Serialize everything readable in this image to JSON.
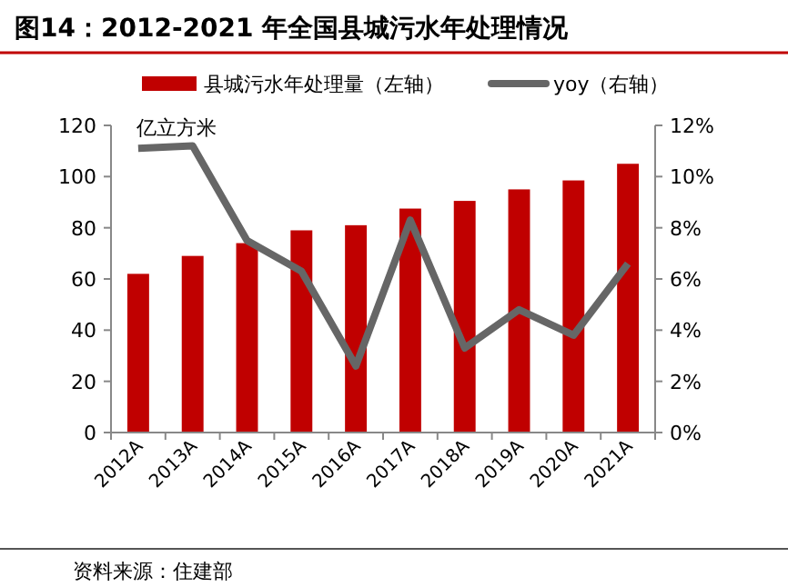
{
  "chart_data": {
    "type": "bar",
    "title": "图14：2012-2021 年全国县城污水年处理情况",
    "ylabel": "亿立方米",
    "categories": [
      "2012A",
      "2013A",
      "2014A",
      "2015A",
      "2016A",
      "2017A",
      "2018A",
      "2019A",
      "2020A",
      "2021A"
    ],
    "series": [
      {
        "name": "县城污水年处理量（左轴）",
        "color": "#c00000",
        "values": [
          62,
          69,
          74,
          79,
          81,
          87.5,
          90.5,
          95,
          98.5,
          105
        ]
      },
      {
        "name": "yoy（右轴）",
        "type": "line",
        "axis": "y2",
        "color": "#666666",
        "values": [
          11.1,
          11.2,
          7.5,
          6.3,
          2.6,
          8.3,
          3.3,
          4.8,
          3.8,
          6.6
        ]
      }
    ],
    "ylim": [
      0,
      120
    ],
    "yticks": [
      0,
      20,
      40,
      60,
      80,
      100,
      120
    ],
    "y2lim": [
      0,
      12
    ],
    "y2ticks": [
      {
        "value": 0,
        "label": "0%"
      },
      {
        "value": 2,
        "label": "2%"
      },
      {
        "value": 4,
        "label": "4%"
      },
      {
        "value": 6,
        "label": "6%"
      },
      {
        "value": 8,
        "label": "8%"
      },
      {
        "value": 10,
        "label": "10%"
      },
      {
        "value": 12,
        "label": "12%"
      }
    ],
    "legend": "top",
    "grid": false,
    "marker": "none",
    "line_style": "solid",
    "annotations": [
      "资料来源：住建部"
    ]
  }
}
